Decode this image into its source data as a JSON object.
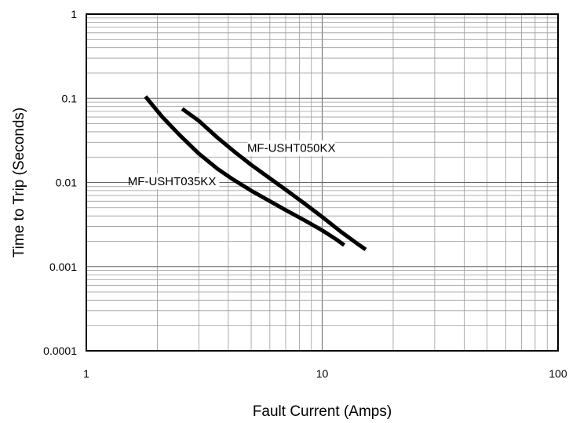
{
  "chart_data": {
    "type": "line",
    "xlabel": "Fault Current (Amps)",
    "ylabel": "Time to Trip (Seconds)",
    "xscale": "log",
    "yscale": "log",
    "xlim": [
      1,
      100
    ],
    "ylim": [
      0.0001,
      1
    ],
    "x_ticks": [
      "1",
      "10",
      "100"
    ],
    "y_ticks": [
      "1",
      "0.1",
      "0.01",
      "0.001",
      "0.0001"
    ],
    "grid": true,
    "series": [
      {
        "name": "MF-USHT035KX",
        "x": [
          1.78,
          2.1,
          2.5,
          3.0,
          3.6,
          4.2,
          5.0,
          6.0,
          7.0,
          8.5,
          10.0,
          11.5,
          12.4
        ],
        "y": [
          0.105,
          0.06,
          0.036,
          0.022,
          0.0145,
          0.0108,
          0.008,
          0.006,
          0.0047,
          0.0035,
          0.0027,
          0.0021,
          0.0018
        ]
      },
      {
        "name": "MF-USHT050KX",
        "x": [
          2.55,
          3.0,
          3.6,
          4.3,
          5.0,
          6.0,
          7.0,
          8.5,
          10.0,
          12.0,
          14.0,
          15.3
        ],
        "y": [
          0.075,
          0.054,
          0.034,
          0.0225,
          0.0162,
          0.0112,
          0.0082,
          0.0055,
          0.0039,
          0.0026,
          0.0019,
          0.0016
        ]
      }
    ]
  }
}
